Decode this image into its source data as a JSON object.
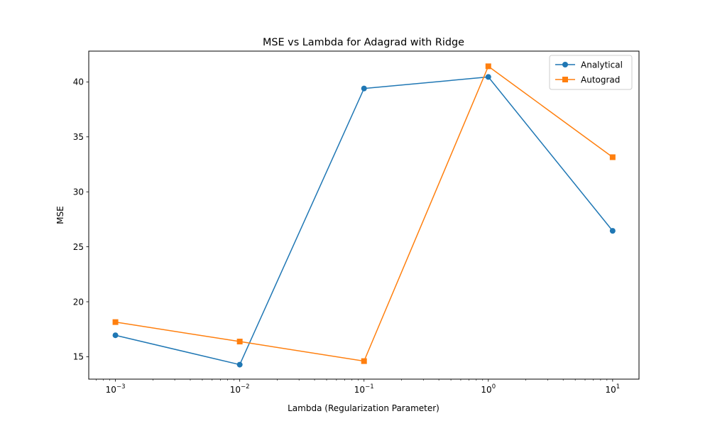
{
  "chart_data": {
    "type": "line",
    "title": "MSE vs Lambda for Adagrad with Ridge",
    "xlabel": "Lambda (Regularization Parameter)",
    "ylabel": "MSE",
    "xscale": "log",
    "xlim": [
      0.00061,
      16.3
    ],
    "ylim": [
      12.96,
      42.8
    ],
    "x": [
      0.001,
      0.01,
      0.1,
      1,
      10
    ],
    "xticks": [
      {
        "value": 0.001,
        "base": "10",
        "exp": "−3"
      },
      {
        "value": 0.01,
        "base": "10",
        "exp": "−2"
      },
      {
        "value": 0.1,
        "base": "10",
        "exp": "−1"
      },
      {
        "value": 1,
        "base": "10",
        "exp": "0"
      },
      {
        "value": 10,
        "base": "10",
        "exp": "1"
      }
    ],
    "yticks": [
      15,
      20,
      25,
      30,
      35,
      40
    ],
    "grid": false,
    "legend_position": "top-right",
    "series": [
      {
        "name": "Analytical",
        "marker": "circle",
        "color": "#1f77b4",
        "values": [
          16.95,
          14.28,
          39.4,
          40.45,
          26.45
        ]
      },
      {
        "name": "Autograd",
        "marker": "square",
        "color": "#ff7f0e",
        "values": [
          18.15,
          16.38,
          14.6,
          41.42,
          33.15
        ]
      }
    ]
  }
}
